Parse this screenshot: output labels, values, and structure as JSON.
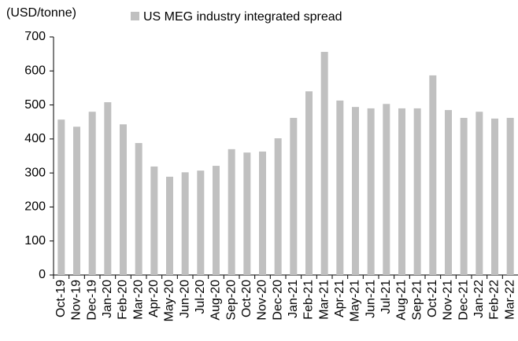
{
  "chart_data": {
    "type": "bar",
    "y_label": "(USD/tonne)",
    "series_name": "US MEG industry integrated spread",
    "color": "#c0c0c0",
    "categories": [
      "Oct-19",
      "Nov-19",
      "Dec-19",
      "Jan-20",
      "Feb-20",
      "Mar-20",
      "Apr-20",
      "May-20",
      "Jun-20",
      "Jul-20",
      "Aug-20",
      "Sep-20",
      "Oct-20",
      "Nov-20",
      "Dec-20",
      "Jan-21",
      "Feb-21",
      "Mar-21",
      "Apr-21",
      "May-21",
      "Jun-21",
      "Jul-21",
      "Aug-21",
      "Sep-21",
      "Oct-21",
      "Nov-21",
      "Dec-21",
      "Jan-22",
      "Feb-22",
      "Mar-22"
    ],
    "values": [
      457,
      436,
      480,
      508,
      443,
      388,
      319,
      289,
      302,
      307,
      321,
      370,
      360,
      363,
      402,
      462,
      540,
      656,
      513,
      494,
      490,
      503,
      490,
      490,
      587,
      485,
      462,
      480,
      460,
      462
    ],
    "ylim": [
      0,
      700
    ],
    "yticks": [
      0,
      100,
      200,
      300,
      400,
      500,
      600,
      700
    ],
    "grid": false
  }
}
